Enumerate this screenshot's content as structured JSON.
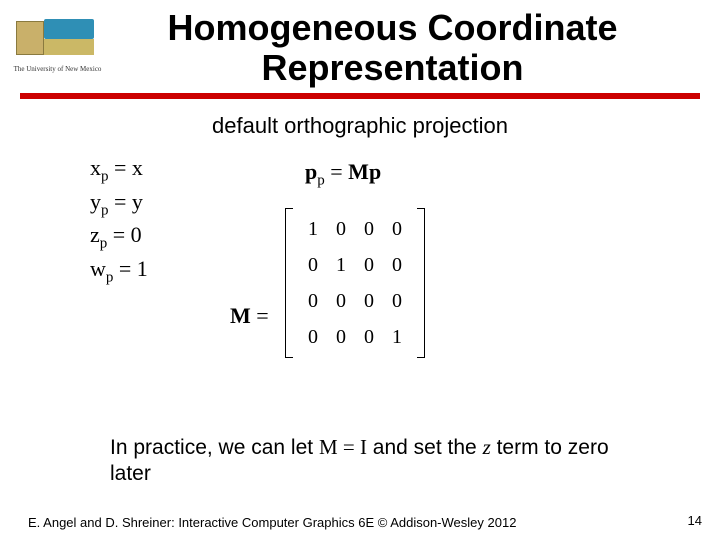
{
  "logo": {
    "caption": "The University of New Mexico"
  },
  "title": {
    "line1": "Homogeneous Coordinate",
    "line2": "Representation"
  },
  "subtitle": "default orthographic projection",
  "equations": {
    "xp": "x",
    "xp_sub": "p",
    "xp_rhs": " = x",
    "yp": "y",
    "yp_sub": "p",
    "yp_rhs": " = y",
    "zp": "z",
    "zp_sub": "p",
    "zp_rhs": " = 0",
    "wp": "w",
    "wp_sub": "p",
    "wp_rhs": " = 1"
  },
  "ppmp": {
    "p1": "p",
    "sub": "p",
    "eq": " = ",
    "M": "M",
    "p2": "p"
  },
  "meq": {
    "M": "M",
    "eq": " ="
  },
  "matrix": {
    "rows": [
      [
        "1",
        "0",
        "0",
        "0"
      ],
      [
        "0",
        "1",
        "0",
        "0"
      ],
      [
        "0",
        "0",
        "0",
        "0"
      ],
      [
        "0",
        "0",
        "0",
        "1"
      ]
    ]
  },
  "practice": {
    "prefix": "In practice, we can let ",
    "M": "M",
    "eq": " = ",
    "I": "I",
    "mid": " and set the ",
    "z": "z",
    "suffix": " term to zero later"
  },
  "footer": "E. Angel and D. Shreiner: Interactive Computer Graphics 6E © Addison-Wesley 2012",
  "pagenum": "14"
}
